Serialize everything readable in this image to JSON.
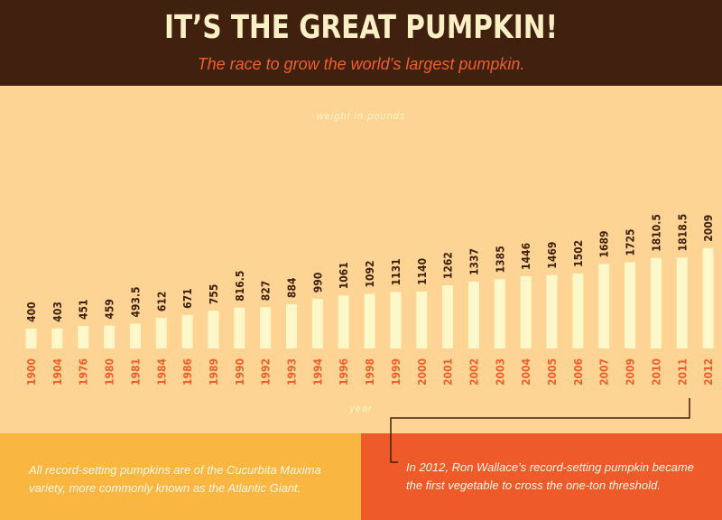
{
  "header": {
    "title": "IT’S THE GREAT PUMPKIN!",
    "subtitle": "The race to grow the world’s largest pumpkin."
  },
  "chart_data": {
    "type": "bar",
    "ylabel": "weight in pounds",
    "xlabel": "year",
    "categories": [
      "1900",
      "1904",
      "1976",
      "1980",
      "1981",
      "1984",
      "1986",
      "1989",
      "1990",
      "1992",
      "1993",
      "1994",
      "1996",
      "1998",
      "1999",
      "2000",
      "2001",
      "2002",
      "2003",
      "2004",
      "2005",
      "2006",
      "2007",
      "2009",
      "2010",
      "2011",
      "2012"
    ],
    "values": [
      400,
      403,
      451,
      459,
      493.5,
      612,
      671,
      755,
      816.5,
      827,
      884,
      990,
      1061,
      1092,
      1131,
      1140,
      1262,
      1337,
      1385,
      1446,
      1469,
      1502,
      1689,
      1725,
      1810.5,
      1818.5,
      2009
    ],
    "value_labels": [
      "400",
      "403",
      "451",
      "459",
      "493.5",
      "612",
      "671",
      "755",
      "816.5",
      "827",
      "884",
      "990",
      "1061",
      "1092",
      "1131",
      "1140",
      "1262",
      "1337",
      "1385",
      "1446",
      "1469",
      "1502",
      "1689",
      "1725",
      "1810.5",
      "1818.5",
      "2009"
    ],
    "colors": {
      "bar": "#fdf7c9",
      "value_label": "#40200f",
      "year_label": "#ef5f2c",
      "axis_title": "#fdf7c9"
    }
  },
  "notes": {
    "left": "All record-setting pumpkins are of the Cucurbita Maxima variety, more commonly known as the Atlantic Giant.",
    "right": "In 2012, Ron Wallace’s record-setting pumpkin became the first vegetable to cross the one-ton threshold."
  },
  "colors": {
    "header_bg": "#40200f",
    "chart_bg": "#fdd494",
    "footer_left_bg": "#f9b641",
    "footer_right_bg": "#ef5a2a"
  }
}
